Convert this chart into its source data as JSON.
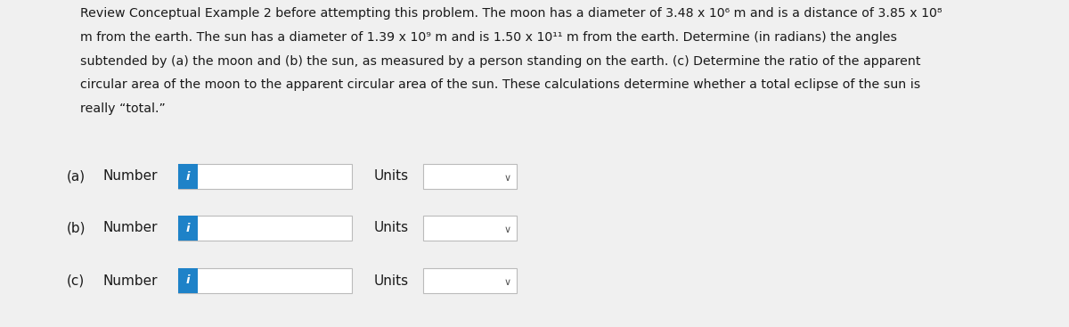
{
  "background_color": "#f0f0f0",
  "text_color": "#1a1a1a",
  "paragraph_lines": [
    "Review Conceptual Example 2 before attempting this problem. The moon has a diameter of 3.48 x 10⁶ m and is a distance of 3.85 x 10⁸",
    "m from the earth. The sun has a diameter of 1.39 x 10⁹ m and is 1.50 x 10¹¹ m from the earth. Determine (in radians) the angles",
    "subtended by (a) the moon and (b) the sun, as measured by a person standing on the earth. (c) Determine the ratio of the apparent",
    "circular area of the moon to the apparent circular area of the sun. These calculations determine whether a total eclipse of the sun is",
    "really “total.”"
  ],
  "rows": [
    {
      "label": "(a)"
    },
    {
      "label": "(b)"
    },
    {
      "label": "(c)"
    }
  ],
  "number_text": "Number",
  "units_text": "Units",
  "blue_tab_color": "#1e82c8",
  "input_box_facecolor": "#ffffff",
  "input_box_edgecolor": "#bbbbbb",
  "units_box_facecolor": "#ffffff",
  "units_box_edgecolor": "#bbbbbb",
  "chevron_color": "#555555",
  "font_size_paragraph": 10.2,
  "font_size_labels": 11.0,
  "font_size_i": 9.5
}
